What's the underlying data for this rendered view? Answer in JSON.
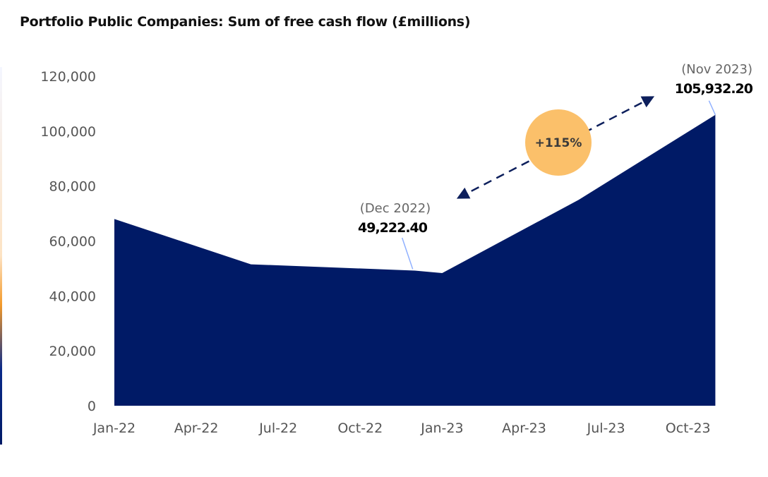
{
  "chart_data": {
    "type": "area",
    "title": "Portfolio Public Companies: Sum of free cash flow (£millions)",
    "xlabel": "",
    "ylabel": "",
    "x_tick_labels": [
      "Jan-22",
      "Apr-22",
      "Jul-22",
      "Oct-22",
      "Jan-23",
      "Apr-23",
      "Jul-23",
      "Oct-23"
    ],
    "y_tick_labels": [
      "0",
      "20,000",
      "40,000",
      "60,000",
      "80,000",
      "100,000",
      "120,000"
    ],
    "ylim": [
      0,
      120000
    ],
    "grid": false,
    "series": [
      {
        "color": "#001a66",
        "points": [
          {
            "x": "2022-01",
            "y": 68000
          },
          {
            "x": "2022-06",
            "y": 51500
          },
          {
            "x": "2022-12",
            "y": 49222.4
          },
          {
            "x": "2023-01",
            "y": 48300
          },
          {
            "x": "2023-06",
            "y": 75000
          },
          {
            "x": "2023-11",
            "y": 105932.2
          }
        ]
      }
    ],
    "annotations": [
      {
        "date_label": "(Dec 2022)",
        "value_label": "49,222.40",
        "x": "2022-12",
        "y": 49222.4
      },
      {
        "date_label": "(Nov 2023)",
        "value_label": "105,932.20",
        "x": "2023-11",
        "y": 105932.2
      }
    ],
    "change_badge": {
      "label": "+115%",
      "color": "#fbc06a"
    },
    "arrow_color": "#0d1f5c"
  }
}
